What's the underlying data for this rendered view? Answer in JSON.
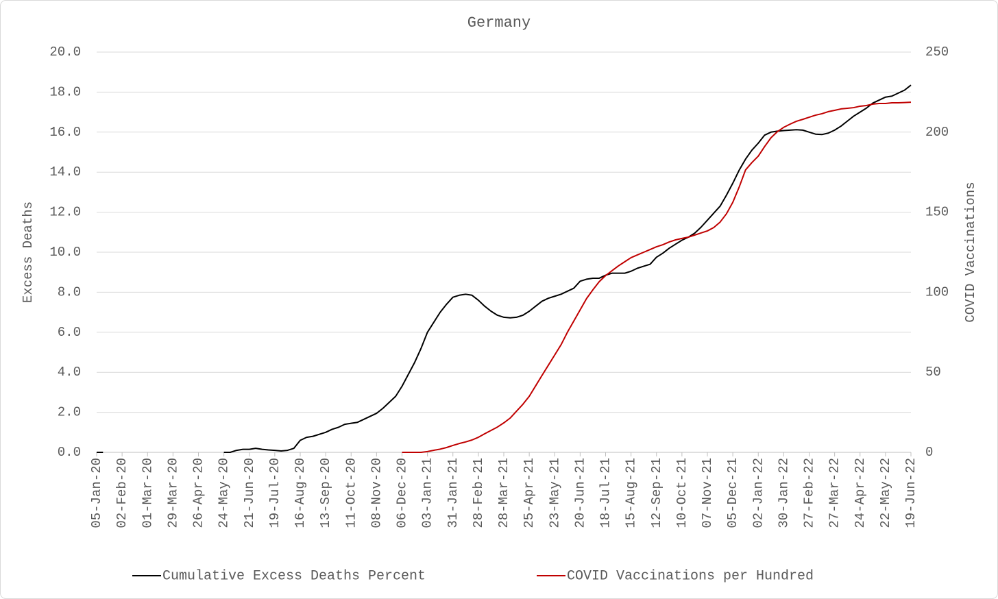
{
  "chart_data": {
    "type": "line",
    "title": "Germany",
    "y_label": "Excess Deaths",
    "y2_label": "COVID Vaccinations",
    "categories": [
      "05-Jan-20",
      null,
      null,
      null,
      "02-Feb-20",
      null,
      null,
      null,
      "01-Mar-20",
      null,
      null,
      null,
      "29-Mar-20",
      null,
      null,
      null,
      "26-Apr-20",
      null,
      null,
      null,
      "24-May-20",
      null,
      null,
      null,
      "21-Jun-20",
      null,
      null,
      null,
      "19-Jul-20",
      null,
      null,
      null,
      "16-Aug-20",
      null,
      null,
      null,
      "13-Sep-20",
      null,
      null,
      null,
      "11-Oct-20",
      null,
      null,
      null,
      "08-Nov-20",
      null,
      null,
      null,
      "06-Dec-20",
      null,
      null,
      null,
      "03-Jan-21",
      null,
      null,
      null,
      "31-Jan-21",
      null,
      null,
      null,
      "28-Feb-21",
      null,
      null,
      null,
      "28-Mar-21",
      null,
      null,
      null,
      "25-Apr-21",
      null,
      null,
      null,
      "23-May-21",
      null,
      null,
      null,
      "20-Jun-21",
      null,
      null,
      null,
      "18-Jul-21",
      null,
      null,
      null,
      "15-Aug-21",
      null,
      null,
      null,
      "12-Sep-21",
      null,
      null,
      null,
      "10-Oct-21",
      null,
      null,
      null,
      "07-Nov-21",
      null,
      null,
      null,
      "05-Dec-21",
      null,
      null,
      null,
      "02-Jan-22",
      null,
      null,
      null,
      "30-Jan-22",
      null,
      null,
      null,
      "27-Feb-22",
      null,
      null,
      null,
      "27-Mar-22",
      null,
      null,
      null,
      "24-Apr-22",
      null,
      null,
      null,
      "22-May-22",
      null,
      null,
      null,
      "19-Jun-22"
    ],
    "series": [
      {
        "name": "Cumulative Excess Deaths Percent",
        "color": "#000000",
        "values": [
          0,
          0,
          null,
          null,
          null,
          null,
          null,
          null,
          null,
          null,
          null,
          null,
          null,
          null,
          null,
          null,
          null,
          null,
          null,
          null,
          0,
          0,
          0.1,
          0.15,
          0.15,
          0.2,
          0.15,
          0.12,
          0.1,
          0.07,
          0.1,
          0.2,
          0.6,
          0.75,
          0.8,
          0.9,
          1.0,
          1.15,
          1.25,
          1.4,
          1.45,
          1.5,
          1.65,
          1.8,
          1.95,
          2.2,
          2.5,
          2.8,
          3.3,
          3.9,
          4.5,
          5.2,
          6.0,
          6.5,
          7.0,
          7.4,
          7.75,
          7.85,
          7.9,
          7.85,
          7.6,
          7.3,
          7.05,
          6.85,
          6.75,
          6.72,
          6.75,
          6.85,
          7.05,
          7.3,
          7.55,
          7.7,
          7.8,
          7.9,
          8.05,
          8.2,
          8.55,
          8.65,
          8.7,
          8.7,
          8.85,
          8.95,
          8.95,
          8.95,
          9.05,
          9.2,
          9.3,
          9.4,
          9.75,
          9.95,
          10.2,
          10.4,
          10.6,
          10.75,
          10.95,
          11.25,
          11.6,
          11.95,
          12.3,
          12.85,
          13.45,
          14.1,
          14.65,
          15.1,
          15.45,
          15.85,
          16.0,
          16.05,
          16.08,
          16.1,
          16.12,
          16.1,
          16.0,
          15.9,
          15.88,
          15.95,
          16.1,
          16.3,
          16.55,
          16.8,
          17.0,
          17.2,
          17.45,
          17.6,
          17.75,
          17.8,
          17.95,
          18.1,
          18.35
        ]
      },
      {
        "name": "COVID Vaccinations per Hundred",
        "color": "#c00000",
        "axis": "y2",
        "values": [
          null,
          null,
          null,
          null,
          null,
          null,
          null,
          null,
          null,
          null,
          null,
          null,
          null,
          null,
          null,
          null,
          null,
          null,
          null,
          null,
          null,
          null,
          null,
          null,
          null,
          null,
          null,
          null,
          null,
          null,
          null,
          null,
          null,
          null,
          null,
          null,
          null,
          null,
          null,
          null,
          null,
          null,
          null,
          null,
          null,
          null,
          null,
          null,
          0,
          0,
          0,
          0,
          0.5,
          1.3,
          2,
          3,
          4.3,
          5.5,
          6.5,
          7.7,
          9.4,
          11.6,
          13.7,
          15.8,
          18.4,
          21.4,
          25.7,
          30,
          35,
          41.5,
          48,
          54.4,
          60.8,
          67.2,
          75,
          82,
          89,
          96,
          101.5,
          106.6,
          110.4,
          113.4,
          116.4,
          119,
          121.6,
          123.3,
          125,
          126.7,
          128.4,
          129.7,
          131.4,
          132.7,
          133.6,
          134.4,
          135.7,
          137,
          138.3,
          140.4,
          143.8,
          149,
          156.2,
          165.7,
          176.4,
          181,
          185,
          191,
          196.5,
          200.3,
          203,
          205,
          206.8,
          208,
          209.3,
          210.6,
          211.5,
          212.8,
          213.6,
          214.5,
          214.9,
          215.3,
          216.2,
          216.6,
          217.5,
          217.9,
          217.9,
          218.3,
          218.3,
          218.5,
          218.7
        ]
      }
    ],
    "ylim": [
      0,
      20
    ],
    "yticks": [
      {
        "value": 0,
        "label": "0.0"
      },
      {
        "value": 2,
        "label": "2.0"
      },
      {
        "value": 4,
        "label": "4.0"
      },
      {
        "value": 6,
        "label": "6.0"
      },
      {
        "value": 8,
        "label": "8.0"
      },
      {
        "value": 10,
        "label": "10.0"
      },
      {
        "value": 12,
        "label": "12.0"
      },
      {
        "value": 14,
        "label": "14.0"
      },
      {
        "value": 16,
        "label": "16.0"
      },
      {
        "value": 18,
        "label": "18.0"
      },
      {
        "value": 20,
        "label": "20.0"
      }
    ],
    "y2lim": [
      0,
      250
    ],
    "y2ticks": [
      0,
      50,
      100,
      150,
      200,
      250
    ],
    "grid": true,
    "legend": "bottom"
  }
}
